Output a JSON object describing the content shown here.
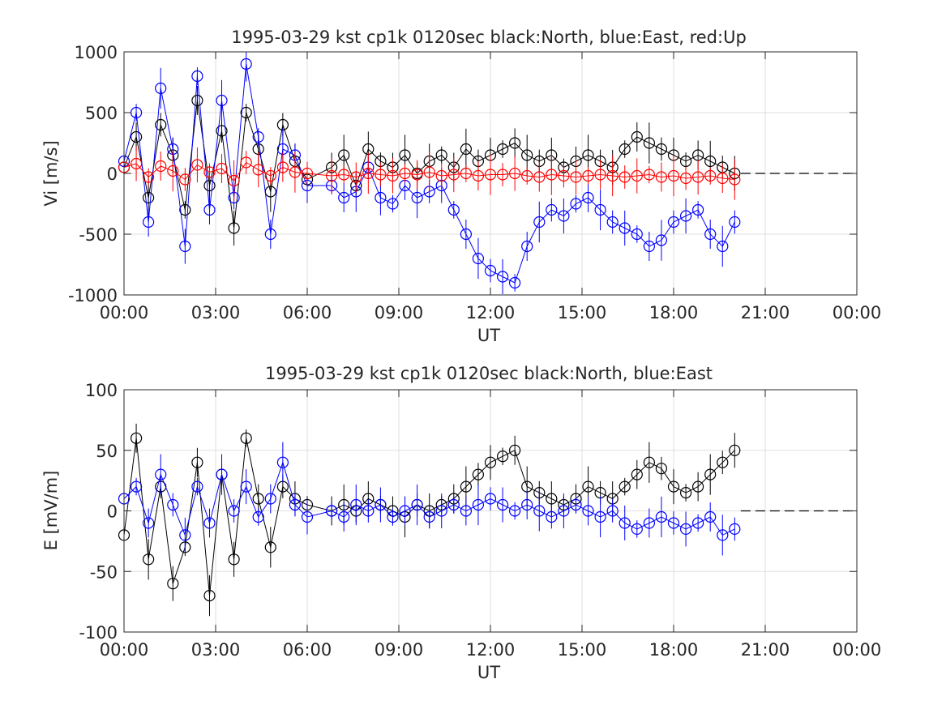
{
  "chart_data": [
    {
      "type": "scatter",
      "title": "1995-03-29 kst cp1k 0120sec black:North, blue:East, red:Up",
      "xlabel": "UT",
      "ylabel": "Vi [m/s]",
      "xlim": [
        "00:00",
        "24:00"
      ],
      "ylim": [
        -1000,
        1000
      ],
      "x_tick_labels": [
        "00:00",
        "03:00",
        "06:00",
        "09:00",
        "12:00",
        "15:00",
        "18:00",
        "21:00",
        "00:00"
      ],
      "y_tick_labels": [
        "1000",
        "500",
        "0",
        "-500",
        "-1000"
      ],
      "y_ticks": [
        1000,
        500,
        0,
        -500,
        -1000
      ],
      "grid": true,
      "error_bars": true,
      "reference_line": {
        "y": 0,
        "style": "dashed",
        "from_hour": 20.2,
        "to_hour": 24
      },
      "series": [
        {
          "color": "#000000",
          "x_hours": [
            0.0,
            0.4,
            0.8,
            1.2,
            1.6,
            2.0,
            2.4,
            2.8,
            3.2,
            3.6,
            4.0,
            4.4,
            4.8,
            5.2,
            5.6,
            6.0,
            6.8,
            7.2,
            7.6,
            8.0,
            8.4,
            8.8,
            9.2,
            9.6,
            10.0,
            10.4,
            10.8,
            11.2,
            11.6,
            12.0,
            12.4,
            12.8,
            13.2,
            13.6,
            14.0,
            14.4,
            14.8,
            15.2,
            15.6,
            16.0,
            16.4,
            16.8,
            17.2,
            17.6,
            18.0,
            18.4,
            18.8,
            19.2,
            19.6,
            20.0
          ],
          "values": [
            50,
            300,
            -200,
            400,
            150,
            -300,
            600,
            -100,
            350,
            -450,
            500,
            200,
            -150,
            400,
            100,
            -50,
            50,
            150,
            -100,
            200,
            100,
            50,
            150,
            0,
            100,
            150,
            50,
            200,
            100,
            150,
            200,
            250,
            150,
            100,
            150,
            50,
            100,
            150,
            100,
            50,
            200,
            300,
            250,
            200,
            150,
            100,
            150,
            100,
            50,
            0
          ]
        },
        {
          "color": "#0000ff",
          "x_hours": [
            0.0,
            0.4,
            0.8,
            1.2,
            1.6,
            2.0,
            2.4,
            2.8,
            3.2,
            3.6,
            4.0,
            4.4,
            4.8,
            5.2,
            5.6,
            6.0,
            6.8,
            7.2,
            7.6,
            8.0,
            8.4,
            8.8,
            9.2,
            9.6,
            10.0,
            10.4,
            10.8,
            11.2,
            11.6,
            12.0,
            12.4,
            12.8,
            13.2,
            13.6,
            14.0,
            14.4,
            14.8,
            15.2,
            15.6,
            16.0,
            16.4,
            16.8,
            17.2,
            17.6,
            18.0,
            18.4,
            18.8,
            19.2,
            19.6,
            20.0
          ],
          "values": [
            100,
            500,
            -400,
            700,
            200,
            -600,
            800,
            -300,
            600,
            -200,
            900,
            300,
            -500,
            200,
            150,
            -100,
            -100,
            -200,
            -150,
            50,
            -200,
            -250,
            -100,
            -200,
            -150,
            -100,
            -300,
            -500,
            -700,
            -800,
            -850,
            -900,
            -600,
            -400,
            -300,
            -350,
            -250,
            -200,
            -300,
            -400,
            -450,
            -500,
            -600,
            -550,
            -400,
            -350,
            -300,
            -500,
            -600,
            -400
          ]
        },
        {
          "color": "#ff0000",
          "x_hours": [
            0.0,
            0.4,
            0.8,
            1.2,
            1.6,
            2.0,
            2.4,
            2.8,
            3.2,
            3.6,
            4.0,
            4.4,
            4.8,
            5.2,
            5.6,
            6.0,
            6.8,
            7.2,
            7.6,
            8.0,
            8.4,
            8.8,
            9.2,
            9.6,
            10.0,
            10.4,
            10.8,
            11.2,
            11.6,
            12.0,
            12.4,
            12.8,
            13.2,
            13.6,
            14.0,
            14.4,
            14.8,
            15.2,
            15.6,
            16.0,
            16.4,
            16.8,
            17.2,
            17.6,
            18.0,
            18.4,
            18.8,
            19.2,
            19.6,
            20.0
          ],
          "values": [
            50,
            80,
            -30,
            60,
            20,
            -50,
            70,
            10,
            40,
            -60,
            90,
            30,
            -20,
            50,
            10,
            0,
            -20,
            -10,
            -30,
            0,
            -10,
            -20,
            0,
            -10,
            10,
            -20,
            -10,
            0,
            -20,
            -10,
            -10,
            0,
            -20,
            -30,
            -10,
            -20,
            -30,
            -20,
            -10,
            -20,
            -30,
            -20,
            -10,
            -30,
            -20,
            -40,
            -30,
            -20,
            -40,
            -50
          ]
        }
      ]
    },
    {
      "type": "scatter",
      "title": "1995-03-29 kst cp1k 0120sec black:North, blue:East",
      "xlabel": "UT",
      "ylabel": "E [mV/m]",
      "xlim": [
        "00:00",
        "24:00"
      ],
      "ylim": [
        -100,
        100
      ],
      "x_tick_labels": [
        "00:00",
        "03:00",
        "06:00",
        "09:00",
        "12:00",
        "15:00",
        "18:00",
        "21:00",
        "00:00"
      ],
      "y_tick_labels": [
        "100",
        "50",
        "0",
        "-50",
        "-100"
      ],
      "y_ticks": [
        100,
        50,
        0,
        -50,
        -100
      ],
      "grid": true,
      "error_bars": true,
      "reference_line": {
        "y": 0,
        "style": "dashed",
        "from_hour": 20.2,
        "to_hour": 24
      },
      "series": [
        {
          "color": "#000000",
          "x_hours": [
            0.0,
            0.4,
            0.8,
            1.2,
            1.6,
            2.0,
            2.4,
            2.8,
            3.2,
            3.6,
            4.0,
            4.4,
            4.8,
            5.2,
            5.6,
            6.0,
            6.8,
            7.2,
            7.6,
            8.0,
            8.4,
            8.8,
            9.2,
            9.6,
            10.0,
            10.4,
            10.8,
            11.2,
            11.6,
            12.0,
            12.4,
            12.8,
            13.2,
            13.6,
            14.0,
            14.4,
            14.8,
            15.2,
            15.6,
            16.0,
            16.4,
            16.8,
            17.2,
            17.6,
            18.0,
            18.4,
            18.8,
            19.2,
            19.6,
            20.0
          ],
          "values": [
            -20,
            60,
            -40,
            20,
            -60,
            -30,
            40,
            -70,
            30,
            -40,
            60,
            10,
            -30,
            20,
            10,
            5,
            0,
            5,
            0,
            10,
            5,
            0,
            -5,
            5,
            0,
            5,
            10,
            20,
            30,
            40,
            45,
            50,
            20,
            15,
            10,
            5,
            10,
            20,
            15,
            10,
            20,
            30,
            40,
            35,
            20,
            15,
            20,
            30,
            40,
            50
          ]
        },
        {
          "color": "#0000ff",
          "x_hours": [
            0.0,
            0.4,
            0.8,
            1.2,
            1.6,
            2.0,
            2.4,
            2.8,
            3.2,
            3.6,
            4.0,
            4.4,
            4.8,
            5.2,
            5.6,
            6.0,
            6.8,
            7.2,
            7.6,
            8.0,
            8.4,
            8.8,
            9.2,
            9.6,
            10.0,
            10.4,
            10.8,
            11.2,
            11.6,
            12.0,
            12.4,
            12.8,
            13.2,
            13.6,
            14.0,
            14.4,
            14.8,
            15.2,
            15.6,
            16.0,
            16.4,
            16.8,
            17.2,
            17.6,
            18.0,
            18.4,
            18.8,
            19.2,
            19.6,
            20.0
          ],
          "values": [
            10,
            20,
            -10,
            30,
            5,
            -20,
            20,
            -10,
            30,
            0,
            20,
            -5,
            10,
            40,
            5,
            -5,
            0,
            -5,
            5,
            0,
            5,
            -5,
            0,
            5,
            -5,
            0,
            5,
            0,
            5,
            10,
            5,
            0,
            5,
            0,
            -5,
            0,
            5,
            0,
            -5,
            0,
            -10,
            -15,
            -10,
            -5,
            -10,
            -15,
            -10,
            -5,
            -20,
            -15
          ]
        }
      ]
    }
  ]
}
